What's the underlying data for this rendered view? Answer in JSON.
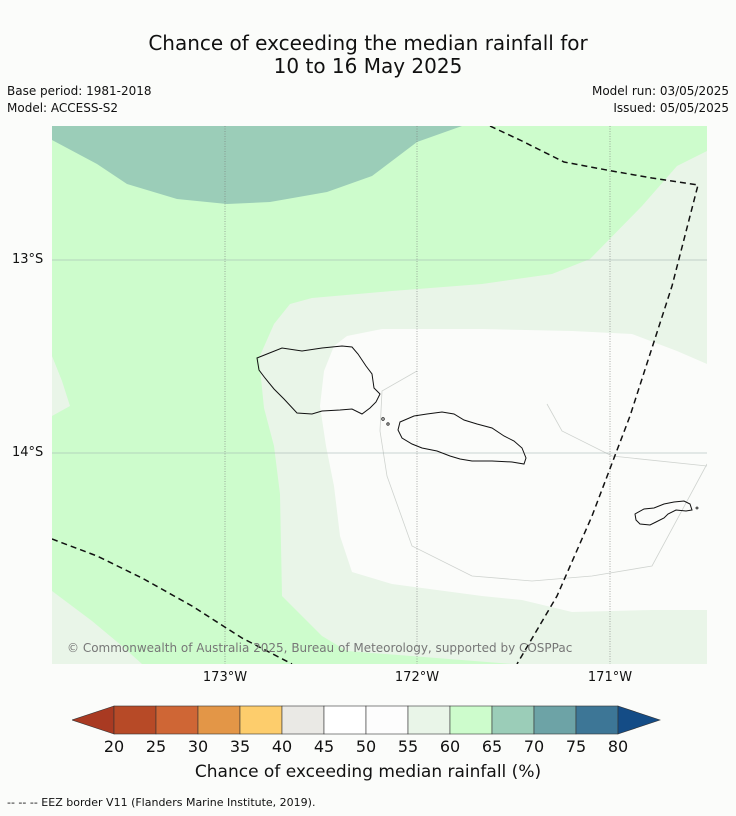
{
  "title_line1": "Chance of exceeding the median rainfall for",
  "title_line2": "10 to 16 May 2025",
  "meta": {
    "base_period": "Base period: 1981-2018",
    "model": "Model: ACCESS-S2",
    "model_run": "Model run: 03/05/2025",
    "issued": "Issued: 05/05/2025"
  },
  "axes": {
    "lat_labels": [
      "13°S",
      "14°S"
    ],
    "lon_labels": [
      "173°W",
      "172°W",
      "171°W"
    ]
  },
  "copyright": "© Commonwealth of Australia 2025, Bureau of Meteorology, supported by COSPPac",
  "colorbar": {
    "ticks": [
      "20",
      "25",
      "30",
      "35",
      "40",
      "45",
      "50",
      "55",
      "60",
      "65",
      "70",
      "75",
      "80"
    ],
    "colors": [
      "#a93a22",
      "#b74a27",
      "#cf6635",
      "#e39647",
      "#fdcd6c",
      "#eae9e5",
      "#ffffff",
      "#fdfdfd",
      "#e9f5e8",
      "#cdfccc",
      "#9bcdb8",
      "#6da3a6",
      "#3d7696",
      "#144c86"
    ],
    "label": "Chance of exceeding median rainfall (%)"
  },
  "footnote": "--  --  -- EEZ border V11 (Flanders Marine Institute, 2019).",
  "map_colors": {
    "c60_65": "#cdfccc",
    "c65_70": "#9bcdb8",
    "c55_60": "#e9f5e8",
    "c50_55": "#fbfcfa"
  }
}
